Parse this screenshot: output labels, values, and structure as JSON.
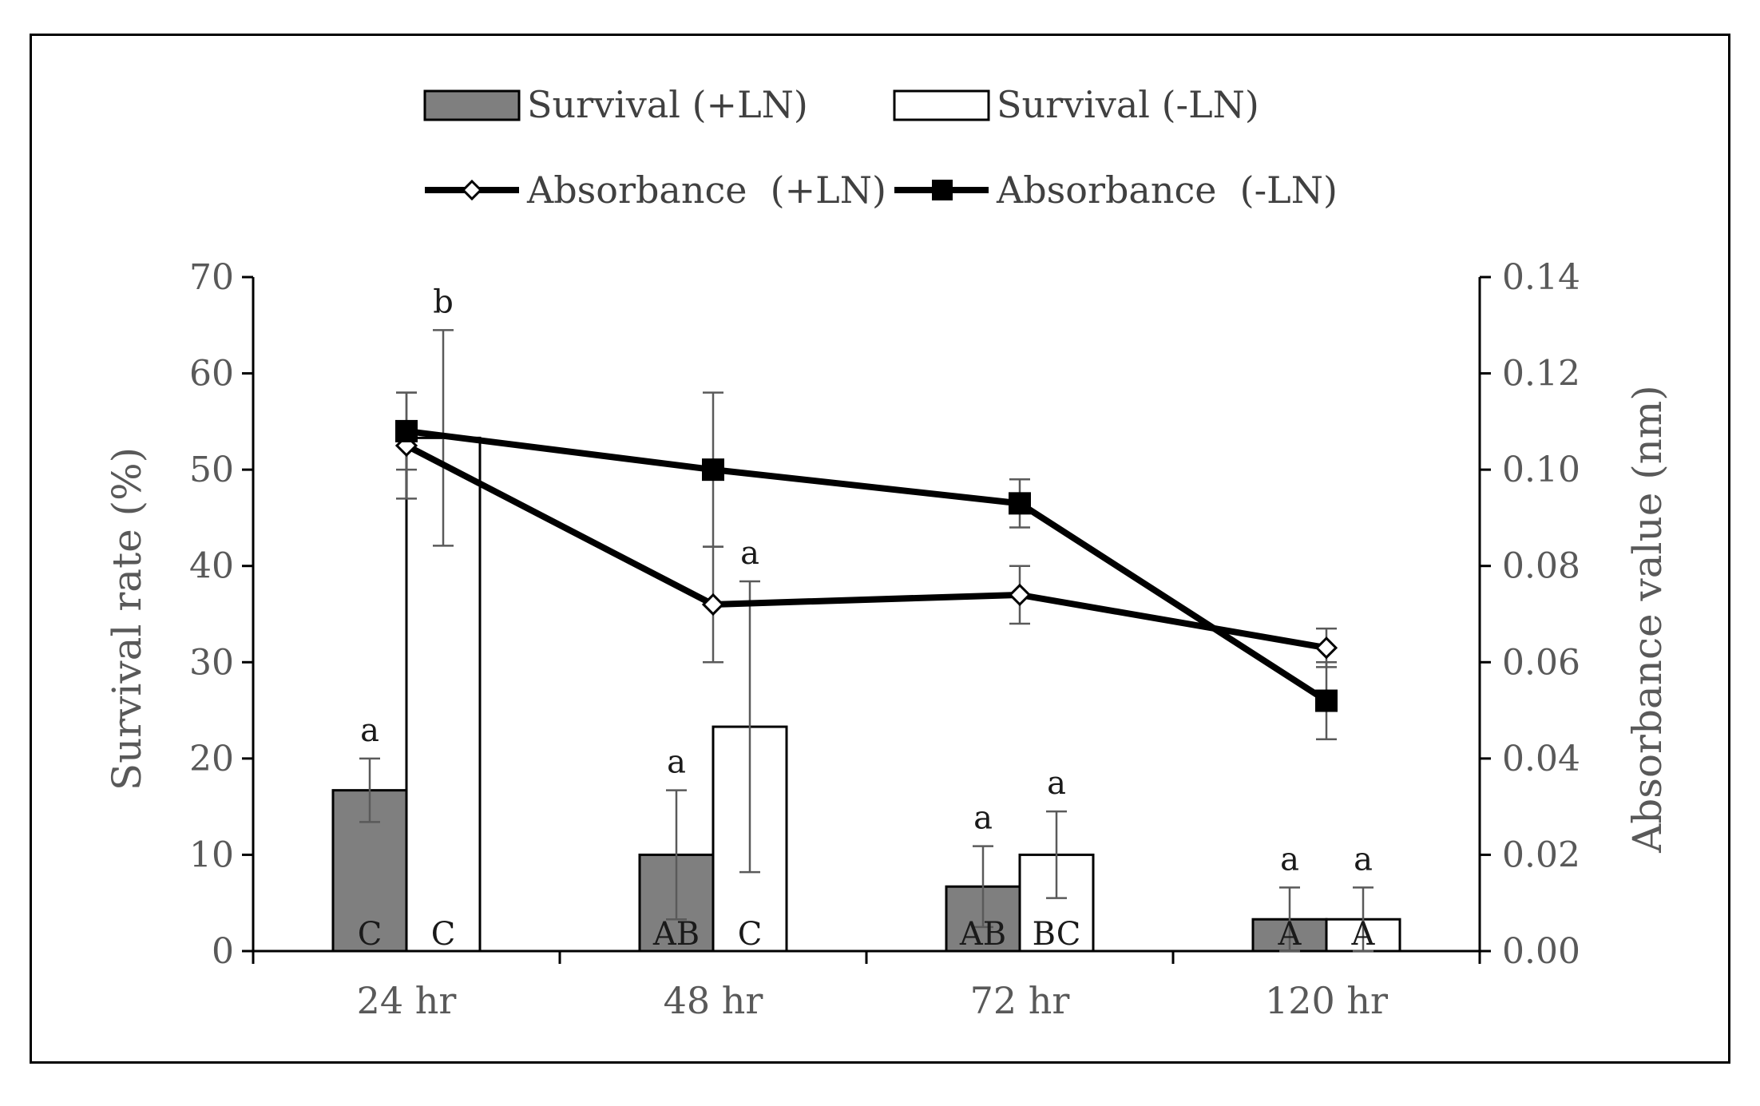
{
  "chart_data": {
    "type": "bar",
    "categories": [
      "24 hr",
      "48 hr",
      "72 hr",
      "120 hr"
    ],
    "y_left": {
      "label": "Survival rate (%)",
      "ylim": [
        0,
        70
      ],
      "ticks": [
        "0",
        "10",
        "20",
        "30",
        "40",
        "50",
        "60",
        "70"
      ]
    },
    "y_right": {
      "label": "Absorbance value (nm)",
      "ylim": [
        0,
        0.14
      ],
      "ticks": [
        "0.00",
        "0.02",
        "0.04",
        "0.06",
        "0.08",
        "0.10",
        "0.12",
        "0.14"
      ]
    },
    "bar_series": [
      {
        "name": "Survival (+LN)",
        "color": "#7f7f7f",
        "values": [
          16.7,
          10.0,
          6.7,
          3.3
        ],
        "errors": [
          3.3,
          6.7,
          4.2,
          3.3
        ],
        "sig_lower": [
          "a",
          "a",
          "a",
          "a"
        ],
        "sig_upper": [
          "C",
          "AB",
          "AB",
          "A"
        ]
      },
      {
        "name": "Survival (-LN)",
        "color": "#ffffff",
        "values": [
          53.3,
          23.3,
          10.0,
          3.3
        ],
        "errors": [
          11.2,
          15.1,
          4.5,
          3.3
        ],
        "sig_lower": [
          "b",
          "a",
          "a",
          "a"
        ],
        "sig_upper": [
          "C",
          "C",
          "BC",
          "A"
        ]
      }
    ],
    "line_series": [
      {
        "name": "Absorbance  (+LN)",
        "marker": "diamond-open",
        "values": [
          0.105,
          0.072,
          0.074,
          0.063
        ],
        "errors": [
          0.011,
          0.012,
          0.006,
          0.004
        ]
      },
      {
        "name": "Absorbance  (-LN)",
        "marker": "square-filled",
        "values": [
          0.108,
          0.1,
          0.093,
          0.052
        ],
        "errors": [
          0.008,
          0.016,
          0.005,
          0.008
        ]
      }
    ],
    "grid": false,
    "legend_position": "top"
  }
}
